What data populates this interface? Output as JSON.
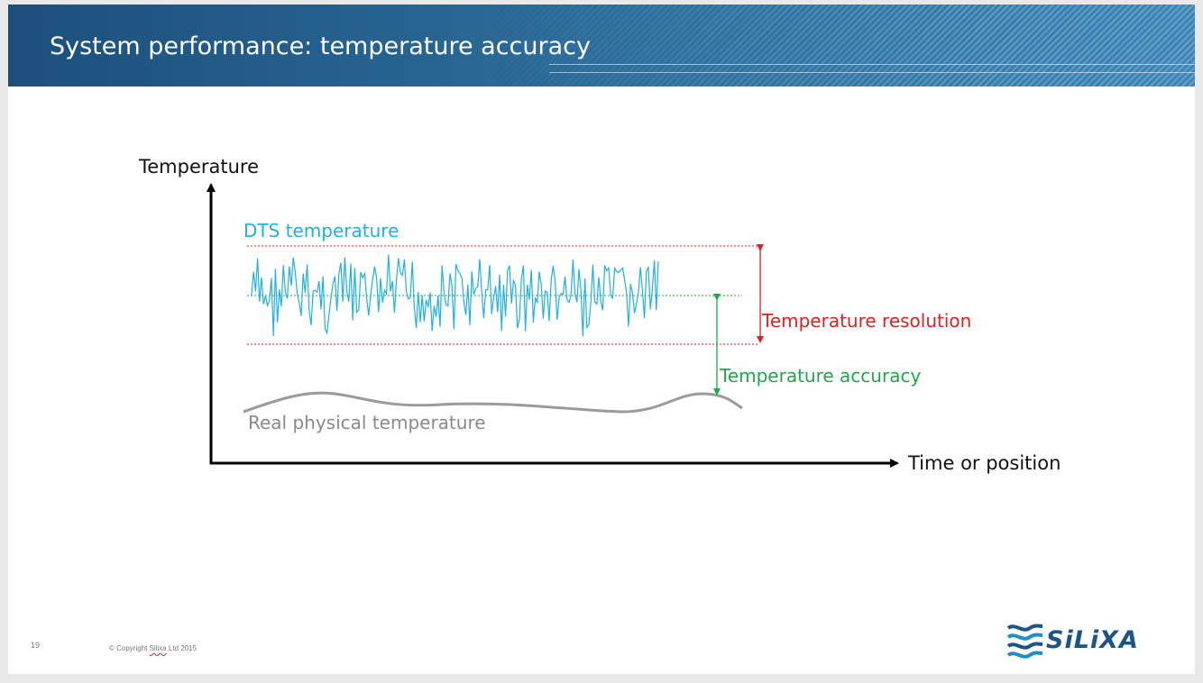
{
  "slide": {
    "title": "System performance: temperature accuracy",
    "page_number": "19",
    "copyright_prefix": "© Copyright ",
    "copyright_company": "Silixa",
    "copyright_suffix": " Ltd  2015",
    "logo_text": "SiLiXA"
  },
  "diagram": {
    "y_axis_label": "Temperature",
    "x_axis_label": "Time or position",
    "dts_label": "DTS temperature",
    "resolution_label": "Temperature resolution",
    "accuracy_label": "Temperature accuracy",
    "real_label": "Real physical temperature"
  },
  "colors": {
    "header": "#2a6a98",
    "dts": "#1fb0e8",
    "resolution": "#e02020",
    "accuracy": "#1fa84a",
    "real": "#8a8a8a",
    "logo": "#1d5488"
  }
}
